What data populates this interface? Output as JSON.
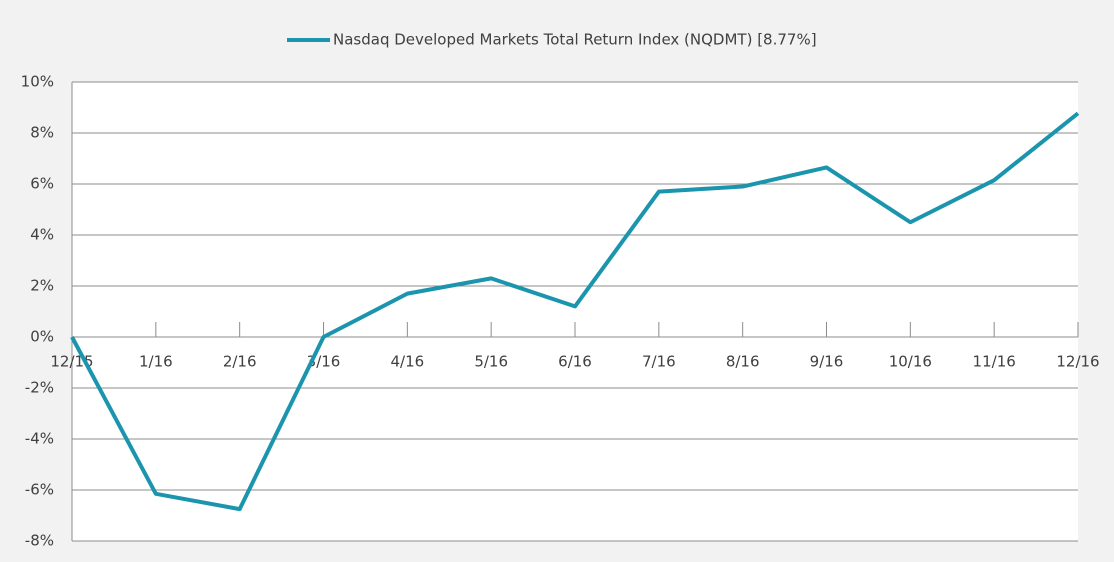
{
  "chart_data": {
    "type": "line",
    "categories": [
      "12/15",
      "1/16",
      "2/16",
      "3/16",
      "4/16",
      "5/16",
      "6/16",
      "7/16",
      "8/16",
      "9/16",
      "10/16",
      "11/16",
      "12/16"
    ],
    "series": [
      {
        "name": "Nasdaq Developed Markets Total Return Index (NQDMT) [8.77%]",
        "color": "#1b95ad",
        "values": [
          0,
          -6.15,
          -6.75,
          0,
          1.7,
          2.3,
          1.2,
          5.7,
          5.9,
          6.65,
          4.5,
          6.15,
          8.77
        ]
      }
    ],
    "ylim": [
      -8,
      10
    ],
    "yticks": [
      {
        "value": -8,
        "label": "-8%"
      },
      {
        "value": -6,
        "label": "-6%"
      },
      {
        "value": -4,
        "label": "-4%"
      },
      {
        "value": -2,
        "label": "-2%"
      },
      {
        "value": 0,
        "label": "0%"
      },
      {
        "value": 2,
        "label": "2%"
      },
      {
        "value": 4,
        "label": "4%"
      },
      {
        "value": 6,
        "label": "6%"
      },
      {
        "value": 8,
        "label": "8%"
      },
      {
        "value": 10,
        "label": "10%"
      }
    ],
    "grid": true,
    "legend": "top"
  }
}
